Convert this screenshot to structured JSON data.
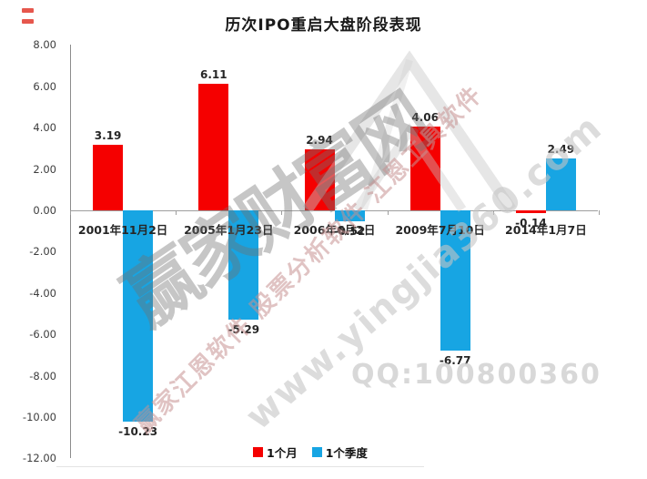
{
  "title": "历次IPO重启大盘阶段表现",
  "chart_data": {
    "type": "bar",
    "title": "历次IPO重启大盘阶段表现",
    "categories": [
      "2001年11月2日",
      "2005年1月23日",
      "2006年6月2日",
      "2009年7月10日",
      "2014年1月7日"
    ],
    "series": [
      {
        "name": "1个月",
        "color": "#f50000",
        "values": [
          3.19,
          6.11,
          2.94,
          4.06,
          -0.14
        ]
      },
      {
        "name": "1个季度",
        "color": "#17a5e3",
        "values": [
          -10.23,
          -5.29,
          -0.52,
          -6.77,
          2.49
        ]
      }
    ],
    "value_labels": [
      [
        "3.19",
        "6.11",
        "2.94",
        "4.06",
        "-0.14"
      ],
      [
        "-10.23",
        "-5.29",
        "-0.52",
        "-6.77",
        "2.49"
      ]
    ],
    "ylim": [
      -12,
      8
    ],
    "ytick_step": 2,
    "ytick_labels": [
      "8.00",
      "6.00",
      "4.00",
      "2.00",
      "0.00",
      "-2.00",
      "-4.00",
      "-6.00",
      "-8.00",
      "-10.00",
      "-12.00"
    ],
    "grid": false,
    "legend_position": "bottom"
  },
  "legend": {
    "items": [
      {
        "label": "1个月",
        "color": "#f50000"
      },
      {
        "label": "1个季度",
        "color": "#17a5e3"
      }
    ]
  },
  "watermark": {
    "brand_large": "赢家财富网",
    "slogan": "赢家江恩软件 股票分析软件 江恩工具软件",
    "url": "www.yingjia360.com",
    "qq": "QQ:100800360",
    "logo": "mountain-logo-icon"
  }
}
